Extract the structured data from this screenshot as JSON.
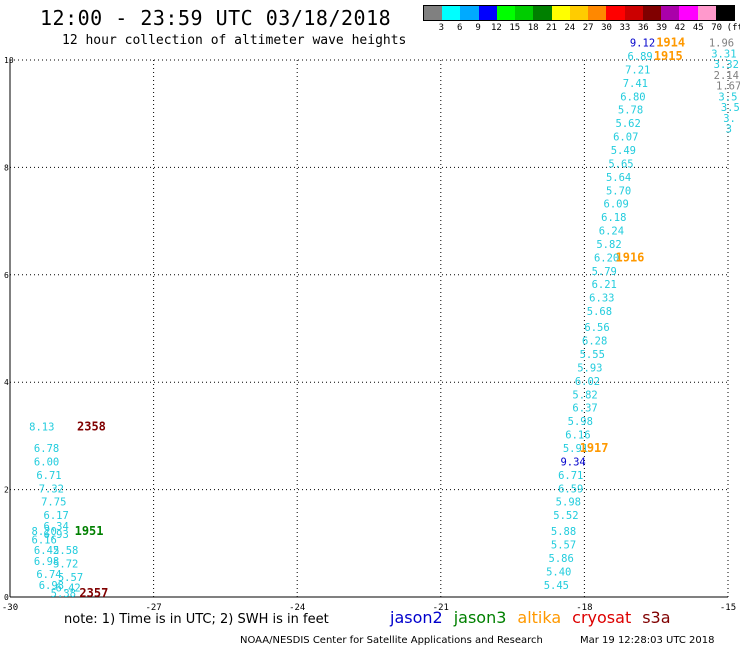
{
  "header": {
    "title": "12:00 - 23:59 UTC 03/18/2018",
    "subtitle": "12 hour collection of altimeter wave heights"
  },
  "legend": {
    "unit": "(ft)",
    "colors": [
      "#808080",
      "#00ffff",
      "#00aaff",
      "#0000ff",
      "#00ff00",
      "#00cc00",
      "#008000",
      "#ffff00",
      "#ffcc00",
      "#ff8800",
      "#ff0000",
      "#cc0000",
      "#800000",
      "#aa00aa",
      "#ff00ff",
      "#ff99cc",
      "#000000"
    ],
    "labels": [
      "3",
      "6",
      "9",
      "12",
      "15",
      "18",
      "21",
      "24",
      "27",
      "30",
      "33",
      "36",
      "39",
      "42",
      "45",
      "70"
    ]
  },
  "note": "note: 1) Time is in UTC; 2) SWH is in feet",
  "satellites": [
    {
      "name": "jason2",
      "color": "#0000cc"
    },
    {
      "name": "jason3",
      "color": "#008000"
    },
    {
      "name": "altika",
      "color": "#ff9900"
    },
    {
      "name": "cryosat",
      "color": "#dd0000"
    },
    {
      "name": "s3a",
      "color": "#800000"
    }
  ],
  "footer": {
    "credit": "NOAA/NESDIS Center for Satellite Applications and Research",
    "timestamp": "Mar 19 12:28:03 UTC 2018"
  },
  "chart_data": {
    "type": "scatter",
    "title": "12:00 - 23:59 UTC 03/18/2018",
    "subtitle": "12 hour collection of altimeter wave heights",
    "xlim": [
      -30,
      -15
    ],
    "ylim": [
      0,
      10
    ],
    "xticks": [
      -30,
      -27,
      -24,
      -21,
      -18,
      -15
    ],
    "xtick_labels": [
      "-30",
      "-27",
      "-24",
      "-21",
      "-18",
      "-15"
    ],
    "yticks": [
      0,
      2,
      4,
      6,
      8,
      10
    ],
    "ytick_labels": [
      "0",
      "2",
      "4",
      "6",
      "8",
      "10"
    ],
    "grid": true,
    "points": [
      {
        "x": -29.6,
        "y": 3.1,
        "text": "8.13",
        "color": "#22ccdd"
      },
      {
        "x": -29.5,
        "y": 2.7,
        "text": "6.78",
        "color": "#22ccdd"
      },
      {
        "x": -29.5,
        "y": 2.45,
        "text": "6.00",
        "color": "#22ccdd"
      },
      {
        "x": -29.45,
        "y": 2.2,
        "text": "6.71",
        "color": "#22ccdd"
      },
      {
        "x": -29.4,
        "y": 1.95,
        "text": "7.32",
        "color": "#22ccdd"
      },
      {
        "x": -29.35,
        "y": 1.7,
        "text": "7.75",
        "color": "#22ccdd"
      },
      {
        "x": -29.3,
        "y": 1.45,
        "text": "6.17",
        "color": "#22ccdd"
      },
      {
        "x": -29.3,
        "y": 1.25,
        "text": "6.34",
        "color": "#22ccdd"
      },
      {
        "x": -29.55,
        "y": 1.15,
        "text": "8.20",
        "color": "#22ccdd"
      },
      {
        "x": -29.3,
        "y": 1.1,
        "text": "6.93",
        "color": "#22ccdd"
      },
      {
        "x": -29.55,
        "y": 1.0,
        "text": "6.16",
        "color": "#22ccdd"
      },
      {
        "x": -29.1,
        "y": 0.8,
        "text": "5.58",
        "color": "#22ccdd"
      },
      {
        "x": -29.5,
        "y": 0.8,
        "text": "6.42",
        "color": "#22ccdd"
      },
      {
        "x": -29.5,
        "y": 0.6,
        "text": "6.98",
        "color": "#22ccdd"
      },
      {
        "x": -29.1,
        "y": 0.55,
        "text": "5.72",
        "color": "#22ccdd"
      },
      {
        "x": -29.45,
        "y": 0.35,
        "text": "6.74",
        "color": "#22ccdd"
      },
      {
        "x": -29.0,
        "y": 0.3,
        "text": "5.57",
        "color": "#22ccdd"
      },
      {
        "x": -29.4,
        "y": 0.15,
        "text": "6.98",
        "color": "#22ccdd"
      },
      {
        "x": -29.05,
        "y": 0.1,
        "text": "6.42",
        "color": "#22ccdd"
      },
      {
        "x": -29.15,
        "y": 0.0,
        "text": "5.38",
        "color": "#22ccdd"
      },
      {
        "x": -18.85,
        "y": 0.15,
        "text": "5.45",
        "color": "#22ccdd"
      },
      {
        "x": -18.8,
        "y": 0.4,
        "text": "5.40",
        "color": "#22ccdd"
      },
      {
        "x": -18.75,
        "y": 0.65,
        "text": "5.86",
        "color": "#22ccdd"
      },
      {
        "x": -18.7,
        "y": 0.9,
        "text": "5.57",
        "color": "#22ccdd"
      },
      {
        "x": -18.7,
        "y": 1.15,
        "text": "5.88",
        "color": "#22ccdd"
      },
      {
        "x": -18.65,
        "y": 1.45,
        "text": "5.52",
        "color": "#22ccdd"
      },
      {
        "x": -18.6,
        "y": 1.7,
        "text": "5.98",
        "color": "#22ccdd"
      },
      {
        "x": -18.55,
        "y": 1.95,
        "text": "6.59",
        "color": "#22ccdd"
      },
      {
        "x": -18.55,
        "y": 2.2,
        "text": "6.71",
        "color": "#22ccdd"
      },
      {
        "x": -18.5,
        "y": 2.45,
        "text": "9.34",
        "color": "#0000cc"
      },
      {
        "x": -18.45,
        "y": 2.7,
        "text": "5.91",
        "color": "#22ccdd"
      },
      {
        "x": -18.4,
        "y": 2.95,
        "text": "6.16",
        "color": "#22ccdd"
      },
      {
        "x": -18.35,
        "y": 3.2,
        "text": "5.98",
        "color": "#22ccdd"
      },
      {
        "x": -18.25,
        "y": 3.45,
        "text": "6.37",
        "color": "#22ccdd"
      },
      {
        "x": -18.25,
        "y": 3.7,
        "text": "5.82",
        "color": "#22ccdd"
      },
      {
        "x": -18.2,
        "y": 3.95,
        "text": "6.02",
        "color": "#22ccdd"
      },
      {
        "x": -18.15,
        "y": 4.2,
        "text": "5.93",
        "color": "#22ccdd"
      },
      {
        "x": -18.1,
        "y": 4.45,
        "text": "5.55",
        "color": "#22ccdd"
      },
      {
        "x": -18.05,
        "y": 4.7,
        "text": "6.28",
        "color": "#22ccdd"
      },
      {
        "x": -18.0,
        "y": 4.95,
        "text": "6.56",
        "color": "#22ccdd"
      },
      {
        "x": -17.95,
        "y": 5.25,
        "text": "5.68",
        "color": "#22ccdd"
      },
      {
        "x": -17.9,
        "y": 5.5,
        "text": "6.33",
        "color": "#22ccdd"
      },
      {
        "x": -17.85,
        "y": 5.75,
        "text": "6.21",
        "color": "#22ccdd"
      },
      {
        "x": -17.85,
        "y": 6.0,
        "text": "5.79",
        "color": "#22ccdd"
      },
      {
        "x": -17.8,
        "y": 6.25,
        "text": "6.20",
        "color": "#22ccdd"
      },
      {
        "x": -17.75,
        "y": 6.5,
        "text": "5.82",
        "color": "#22ccdd"
      },
      {
        "x": -17.7,
        "y": 6.75,
        "text": "6.24",
        "color": "#22ccdd"
      },
      {
        "x": -17.65,
        "y": 7.0,
        "text": "6.18",
        "color": "#22ccdd"
      },
      {
        "x": -17.6,
        "y": 7.25,
        "text": "6.09",
        "color": "#22ccdd"
      },
      {
        "x": -17.55,
        "y": 7.5,
        "text": "5.70",
        "color": "#22ccdd"
      },
      {
        "x": -17.55,
        "y": 7.75,
        "text": "5.64",
        "color": "#22ccdd"
      },
      {
        "x": -17.5,
        "y": 8.0,
        "text": "5.65",
        "color": "#22ccdd"
      },
      {
        "x": -17.45,
        "y": 8.25,
        "text": "5.49",
        "color": "#22ccdd"
      },
      {
        "x": -17.4,
        "y": 8.5,
        "text": "6.07",
        "color": "#22ccdd"
      },
      {
        "x": -17.35,
        "y": 8.75,
        "text": "5.62",
        "color": "#22ccdd"
      },
      {
        "x": -17.3,
        "y": 9.0,
        "text": "5.78",
        "color": "#22ccdd"
      },
      {
        "x": -17.25,
        "y": 9.25,
        "text": "6.80",
        "color": "#22ccdd"
      },
      {
        "x": -17.2,
        "y": 9.5,
        "text": "7.41",
        "color": "#22ccdd"
      },
      {
        "x": -17.15,
        "y": 9.75,
        "text": "7.21",
        "color": "#22ccdd"
      },
      {
        "x": -17.1,
        "y": 10.0,
        "text": "6.89",
        "color": "#22ccdd"
      },
      {
        "x": -17.05,
        "y": 10.25,
        "text": "9.12",
        "color": "#0000cc"
      },
      {
        "x": -15.4,
        "y": 10.25,
        "text": "1.96",
        "color": "#808080"
      },
      {
        "x": -15.35,
        "y": 10.05,
        "text": "3.31",
        "color": "#22ccdd"
      },
      {
        "x": -15.3,
        "y": 9.85,
        "text": "3.32",
        "color": "#22ccdd"
      },
      {
        "x": -15.3,
        "y": 9.65,
        "text": "2.14",
        "color": "#808080"
      },
      {
        "x": -15.25,
        "y": 9.45,
        "text": "1.67",
        "color": "#808080"
      },
      {
        "x": -15.2,
        "y": 9.25,
        "text": "3.5",
        "color": "#22ccdd"
      },
      {
        "x": -15.15,
        "y": 9.05,
        "text": "3.5",
        "color": "#22ccdd"
      },
      {
        "x": -15.1,
        "y": 8.85,
        "text": "3.",
        "color": "#22ccdd"
      },
      {
        "x": -15.05,
        "y": 8.65,
        "text": "3",
        "color": "#22ccdd"
      }
    ],
    "annotations": [
      {
        "x": -28.6,
        "y": 3.1,
        "text": "2358",
        "color": "#800000"
      },
      {
        "x": -28.65,
        "y": 1.15,
        "text": "1951",
        "color": "#008000"
      },
      {
        "x": -28.55,
        "y": 0.0,
        "text": "2357",
        "color": "#800000"
      },
      {
        "x": -16.5,
        "y": 10.25,
        "text": "1914",
        "color": "#ff9900"
      },
      {
        "x": -16.55,
        "y": 10.0,
        "text": "1915",
        "color": "#ff9900"
      },
      {
        "x": -17.35,
        "y": 6.25,
        "text": "1916",
        "color": "#ff9900"
      },
      {
        "x": -18.1,
        "y": 2.7,
        "text": "1917",
        "color": "#ff9900"
      }
    ]
  }
}
